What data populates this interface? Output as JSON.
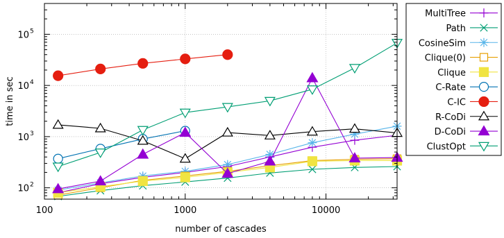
{
  "chart_data": {
    "type": "line",
    "xlabel": "number of cascades",
    "ylabel": "time in sec",
    "x_scale": "log",
    "y_scale": "log",
    "xlim": [
      100,
      32000
    ],
    "ylim": [
      60,
      400000
    ],
    "x_ticks": [
      {
        "value": 100,
        "label": "100"
      },
      {
        "value": 1000,
        "label": "1000"
      },
      {
        "value": 10000,
        "label": "10000"
      }
    ],
    "y_ticks": [
      {
        "value": 100,
        "base": "10",
        "exp": "2"
      },
      {
        "value": 1000,
        "base": "10",
        "exp": "3"
      },
      {
        "value": 10000,
        "base": "10",
        "exp": "4"
      },
      {
        "value": 100000,
        "base": "10",
        "exp": "5"
      }
    ],
    "grid": true,
    "legend_position": "right-outside",
    "x": [
      125,
      250,
      500,
      1000,
      2000,
      4000,
      8000,
      16000,
      32000
    ],
    "series": [
      {
        "name": "MultiTree",
        "color": "#9400d3",
        "marker": "plus",
        "values": [
          80,
          120,
          160,
          200,
          260,
          400,
          620,
          850,
          1060
        ]
      },
      {
        "name": "Path",
        "color": "#009e73",
        "marker": "cross",
        "values": [
          68,
          88,
          110,
          130,
          155,
          195,
          230,
          250,
          260
        ]
      },
      {
        "name": "CosineSim",
        "color": "#56b4e9",
        "marker": "star",
        "values": [
          90,
          125,
          170,
          210,
          285,
          450,
          760,
          1120,
          1600
        ]
      },
      {
        "name": "Clique(0)",
        "color": "#e69f00",
        "marker": "square-open",
        "values": [
          72,
          100,
          140,
          170,
          210,
          270,
          340,
          360,
          370
        ]
      },
      {
        "name": "Clique",
        "color": "#f0e442",
        "marker": "square-filled",
        "values": [
          80,
          105,
          135,
          160,
          200,
          250,
          330,
          340,
          340
        ]
      },
      {
        "name": "C-Rate",
        "color": "#0072b2",
        "marker": "circle-open",
        "values": [
          370,
          580,
          900,
          1300,
          null,
          null,
          null,
          null,
          null
        ]
      },
      {
        "name": "C-IC",
        "color": "#e51e10",
        "marker": "circle-filled",
        "values": [
          15500,
          21000,
          27000,
          33000,
          40000,
          null,
          null,
          null,
          null
        ]
      },
      {
        "name": "R-CoDi",
        "color": "#000000",
        "marker": "triangle-open",
        "values": [
          1700,
          1450,
          830,
          370,
          1200,
          1050,
          1250,
          1420,
          1180
        ]
      },
      {
        "name": "D-CoDi",
        "color": "#9400d3",
        "marker": "triangle-filled",
        "values": [
          95,
          135,
          450,
          1200,
          190,
          330,
          14000,
          380,
          390
        ]
      },
      {
        "name": "ClustOpt",
        "color": "#009e73",
        "marker": "triangle-down-open",
        "values": [
          260,
          490,
          1350,
          2950,
          3800,
          5000,
          8400,
          22000,
          68000
        ]
      }
    ]
  }
}
